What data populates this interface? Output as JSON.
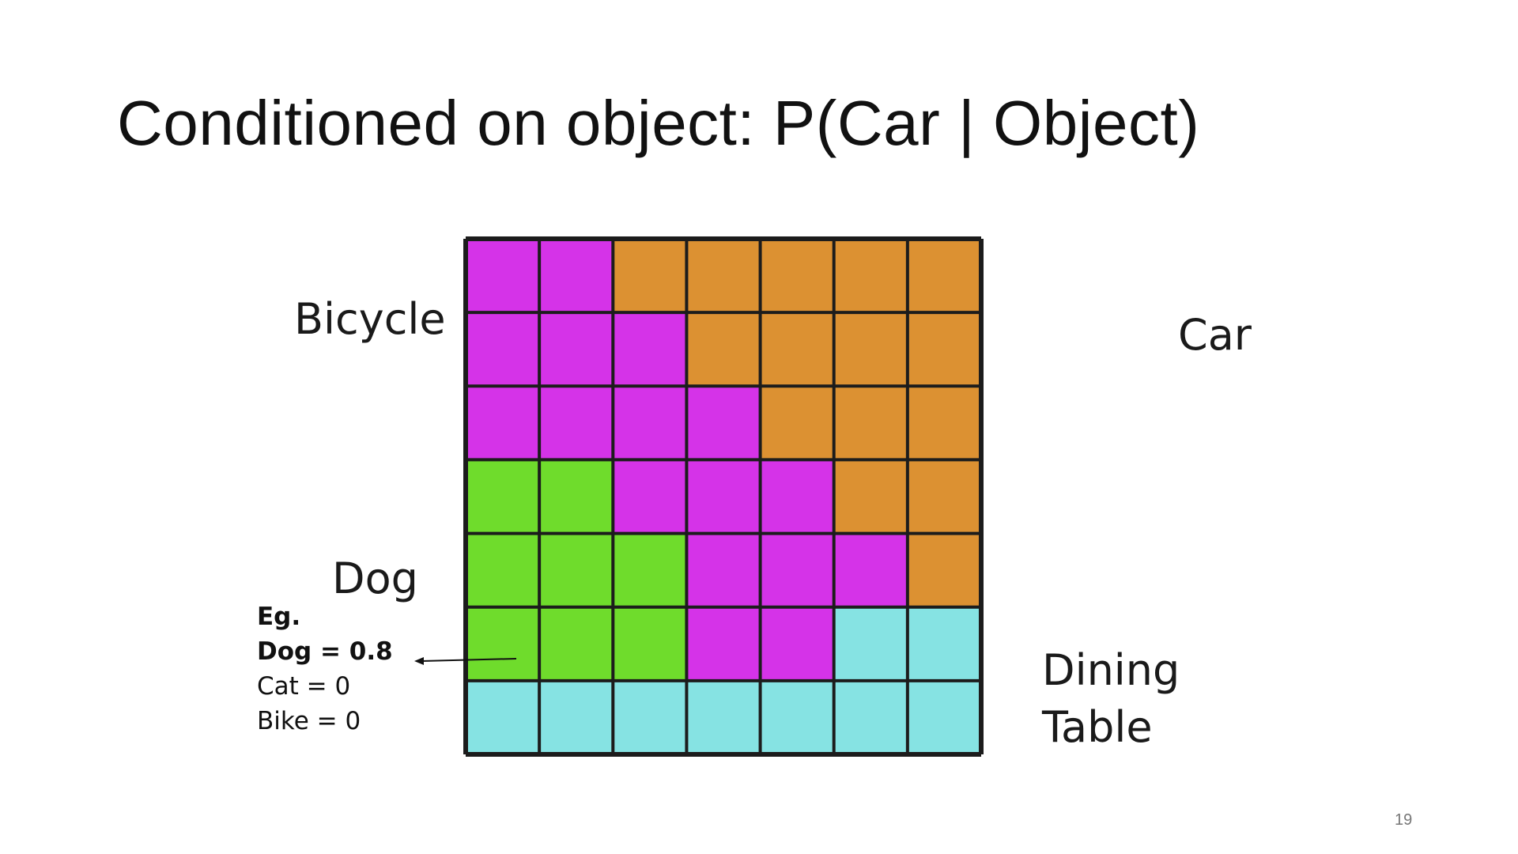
{
  "slide": {
    "title": "Conditioned on object: P(Car | Object)",
    "page_number": "19"
  },
  "labels": {
    "bicycle": "Bicycle",
    "car": "Car",
    "dog": "Dog",
    "dining_line1": "Dining",
    "dining_line2": "Table"
  },
  "example": {
    "heading": "Eg.",
    "line1": "Dog = 0.8",
    "line2": "Cat = 0",
    "line3": "Bike = 0"
  },
  "colors": {
    "bicycle": "#d533e8",
    "car": "#dc9132",
    "dog": "#6fdc2c",
    "dining_table": "#86e3e3",
    "grid_line": "#1c1c1c"
  },
  "grid": {
    "rows": [
      [
        "bicycle",
        "bicycle",
        "car",
        "car",
        "car",
        "car",
        "car"
      ],
      [
        "bicycle",
        "bicycle",
        "bicycle",
        "car",
        "car",
        "car",
        "car"
      ],
      [
        "bicycle",
        "bicycle",
        "bicycle",
        "bicycle",
        "car",
        "car",
        "car"
      ],
      [
        "dog",
        "dog",
        "bicycle",
        "bicycle",
        "bicycle",
        "car",
        "car"
      ],
      [
        "dog",
        "dog",
        "dog",
        "bicycle",
        "bicycle",
        "bicycle",
        "car"
      ],
      [
        "dog",
        "dog",
        "dog",
        "bicycle",
        "bicycle",
        "dining_table",
        "dining_table"
      ],
      [
        "dining_table",
        "dining_table",
        "dining_table",
        "dining_table",
        "dining_table",
        "dining_table",
        "dining_table"
      ]
    ]
  }
}
